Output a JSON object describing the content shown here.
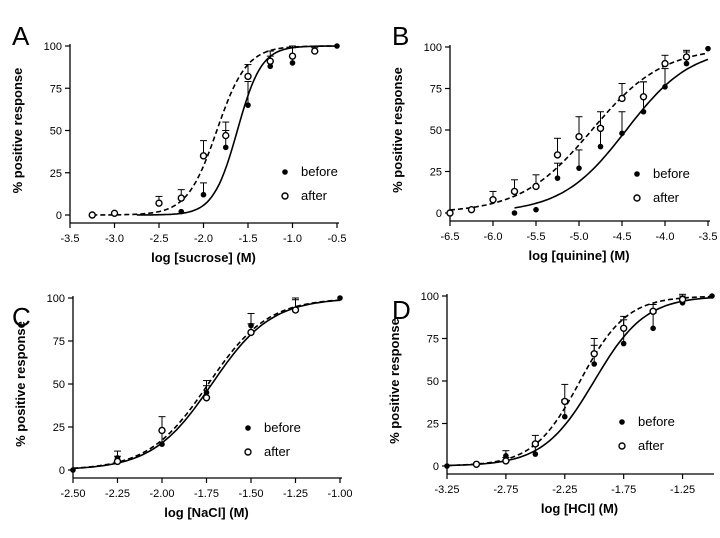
{
  "chart_data": [
    {
      "panel": "A",
      "type": "line",
      "xlabel": "log [sucrose] (M)",
      "ylabel": "% positive response",
      "xlim": [
        -3.5,
        -0.5
      ],
      "ylim": [
        0,
        100
      ],
      "xticks": [
        "-3.5",
        "-3.0",
        "-2.5",
        "-2.0",
        "-1.5",
        "-1.0",
        "-0.5"
      ],
      "yticks": [
        "0",
        "25",
        "50",
        "75",
        "100"
      ],
      "legend": [
        "before",
        "after"
      ],
      "series": [
        {
          "name": "before",
          "marker": "filled-circle",
          "line_style": "solid",
          "ec50": -1.62,
          "hill": 3.2,
          "fit_range": [
            -2.75,
            -0.5
          ],
          "points": [
            {
              "x": -2.25,
              "y": 2,
              "err": 0
            },
            {
              "x": -2.0,
              "y": 12,
              "err": 7
            },
            {
              "x": -1.75,
              "y": 40,
              "err": 10
            },
            {
              "x": -1.5,
              "y": 65,
              "err": 14
            },
            {
              "x": -1.25,
              "y": 88,
              "err": 6
            },
            {
              "x": -1.0,
              "y": 90,
              "err": 10
            },
            {
              "x": -0.75,
              "y": 97,
              "err": 3
            },
            {
              "x": -0.5,
              "y": 100,
              "err": 0
            }
          ]
        },
        {
          "name": "after",
          "marker": "open-circle",
          "line_style": "dashed",
          "ec50": -1.85,
          "hill": 2.6,
          "fit_range": [
            -3.25,
            -0.5
          ],
          "points": [
            {
              "x": -3.25,
              "y": 0,
              "err": 0
            },
            {
              "x": -3.0,
              "y": 1,
              "err": 0
            },
            {
              "x": -2.5,
              "y": 7,
              "err": 4
            },
            {
              "x": -2.25,
              "y": 10,
              "err": 5
            },
            {
              "x": -2.0,
              "y": 35,
              "err": 9
            },
            {
              "x": -1.75,
              "y": 47,
              "err": 8
            },
            {
              "x": -1.5,
              "y": 82,
              "err": 7
            },
            {
              "x": -1.25,
              "y": 91,
              "err": 6
            },
            {
              "x": -1.0,
              "y": 94,
              "err": 5
            },
            {
              "x": -0.75,
              "y": 97,
              "err": 2
            }
          ]
        }
      ]
    },
    {
      "panel": "B",
      "type": "line",
      "xlabel": "log [quinine] (M)",
      "ylabel": "% positive response",
      "xlim": [
        -6.5,
        -3.5
      ],
      "ylim": [
        0,
        100
      ],
      "xticks": [
        "-6.5",
        "-6.0",
        "-5.5",
        "-5.0",
        "-4.5",
        "-4.0",
        "-3.5"
      ],
      "yticks": [
        "0",
        "25",
        "50",
        "75",
        "100"
      ],
      "legend": [
        "before",
        "after"
      ],
      "series": [
        {
          "name": "before",
          "marker": "filled-circle",
          "line_style": "solid",
          "ec50": -4.45,
          "hill": 1.15,
          "fit_range": [
            -5.75,
            -3.5
          ],
          "points": [
            {
              "x": -5.75,
              "y": 0,
              "err": 0
            },
            {
              "x": -5.5,
              "y": 2,
              "err": 0
            },
            {
              "x": -5.25,
              "y": 21,
              "err": 9
            },
            {
              "x": -5.0,
              "y": 27,
              "err": 11
            },
            {
              "x": -4.75,
              "y": 40,
              "err": 12
            },
            {
              "x": -4.5,
              "y": 48,
              "err": 13
            },
            {
              "x": -4.25,
              "y": 61,
              "err": 18
            },
            {
              "x": -4.0,
              "y": 76,
              "err": 11
            },
            {
              "x": -3.75,
              "y": 90,
              "err": 7
            },
            {
              "x": -3.5,
              "y": 99,
              "err": 0
            }
          ]
        },
        {
          "name": "after",
          "marker": "open-circle",
          "line_style": "dashed",
          "ec50": -4.85,
          "hill": 1.05,
          "fit_range": [
            -6.5,
            -3.5
          ],
          "points": [
            {
              "x": -6.5,
              "y": 0,
              "err": 0
            },
            {
              "x": -6.25,
              "y": 2,
              "err": 0
            },
            {
              "x": -6.0,
              "y": 8,
              "err": 5
            },
            {
              "x": -5.75,
              "y": 13,
              "err": 7
            },
            {
              "x": -5.5,
              "y": 16,
              "err": 7
            },
            {
              "x": -5.25,
              "y": 35,
              "err": 10
            },
            {
              "x": -5.0,
              "y": 46,
              "err": 12
            },
            {
              "x": -4.75,
              "y": 51,
              "err": 10
            },
            {
              "x": -4.5,
              "y": 69,
              "err": 9
            },
            {
              "x": -4.25,
              "y": 70,
              "err": 9
            },
            {
              "x": -4.0,
              "y": 90,
              "err": 5
            },
            {
              "x": -3.75,
              "y": 94,
              "err": 4
            }
          ]
        }
      ]
    },
    {
      "panel": "C",
      "type": "line",
      "xlabel": "log [NaCl] (M)",
      "ylabel": "% positive response",
      "xlim": [
        -2.5,
        -1.0
      ],
      "ylim": [
        0,
        100
      ],
      "xticks": [
        "-2.50",
        "-2.25",
        "-2.00",
        "-1.75",
        "-1.50",
        "-1.25",
        "-1.00"
      ],
      "yticks": [
        "0",
        "25",
        "50",
        "75",
        "100"
      ],
      "legend": [
        "before",
        "after"
      ],
      "series": [
        {
          "name": "before",
          "marker": "filled-circle",
          "line_style": "solid",
          "ec50": -1.72,
          "hill": 2.6,
          "fit_range": [
            -2.5,
            -1.0
          ],
          "points": [
            {
              "x": -2.5,
              "y": 0,
              "err": 0
            },
            {
              "x": -2.25,
              "y": 7,
              "err": 4
            },
            {
              "x": -2.0,
              "y": 15,
              "err": 8
            },
            {
              "x": -1.75,
              "y": 45,
              "err": 7
            },
            {
              "x": -1.5,
              "y": 84,
              "err": 7
            },
            {
              "x": -1.25,
              "y": 93,
              "err": 7
            },
            {
              "x": -1.0,
              "y": 100,
              "err": 0
            }
          ]
        },
        {
          "name": "after",
          "marker": "open-circle",
          "line_style": "dashed",
          "ec50": -1.74,
          "hill": 2.6,
          "fit_range": [
            -2.5,
            -1.0
          ],
          "points": [
            {
              "x": -2.25,
              "y": 5,
              "err": 3
            },
            {
              "x": -2.0,
              "y": 23,
              "err": 8
            },
            {
              "x": -1.75,
              "y": 42,
              "err": 7
            },
            {
              "x": -1.5,
              "y": 80,
              "err": 5
            },
            {
              "x": -1.25,
              "y": 93,
              "err": 6
            }
          ]
        }
      ]
    },
    {
      "panel": "D",
      "type": "line",
      "xlabel": "log [HCl] (M)",
      "ylabel": "% positive response",
      "xlim": [
        -3.25,
        -1.0
      ],
      "ylim": [
        0,
        100
      ],
      "xticks": [
        "-3.25",
        "-2.75",
        "-2.25",
        "-1.75",
        "-1.25"
      ],
      "yticks": [
        "0",
        "25",
        "50",
        "75",
        "100"
      ],
      "legend": [
        "before",
        "after"
      ],
      "series": [
        {
          "name": "before",
          "marker": "filled-circle",
          "line_style": "solid",
          "ec50": -2.0,
          "hill": 2.0,
          "fit_range": [
            -3.25,
            -1.0
          ],
          "points": [
            {
              "x": -3.25,
              "y": 0,
              "err": 0
            },
            {
              "x": -3.0,
              "y": 1,
              "err": 0
            },
            {
              "x": -2.75,
              "y": 6,
              "err": 3
            },
            {
              "x": -2.5,
              "y": 7,
              "err": 5
            },
            {
              "x": -2.25,
              "y": 29,
              "err": 10
            },
            {
              "x": -2.0,
              "y": 60,
              "err": 11
            },
            {
              "x": -1.75,
              "y": 72,
              "err": 14
            },
            {
              "x": -1.5,
              "y": 81,
              "err": 9
            },
            {
              "x": -1.25,
              "y": 96,
              "err": 5
            },
            {
              "x": -1.0,
              "y": 100,
              "err": 0
            }
          ]
        },
        {
          "name": "after",
          "marker": "open-circle",
          "line_style": "dashed",
          "ec50": -2.12,
          "hill": 2.2,
          "fit_range": [
            -3.25,
            -1.0
          ],
          "points": [
            {
              "x": -3.0,
              "y": 1,
              "err": 0
            },
            {
              "x": -2.75,
              "y": 3,
              "err": 2
            },
            {
              "x": -2.5,
              "y": 13,
              "err": 5
            },
            {
              "x": -2.25,
              "y": 38,
              "err": 10
            },
            {
              "x": -2.0,
              "y": 66,
              "err": 9
            },
            {
              "x": -1.75,
              "y": 81,
              "err": 7
            },
            {
              "x": -1.5,
              "y": 91,
              "err": 4
            },
            {
              "x": -1.25,
              "y": 98,
              "err": 2
            }
          ]
        }
      ]
    }
  ]
}
